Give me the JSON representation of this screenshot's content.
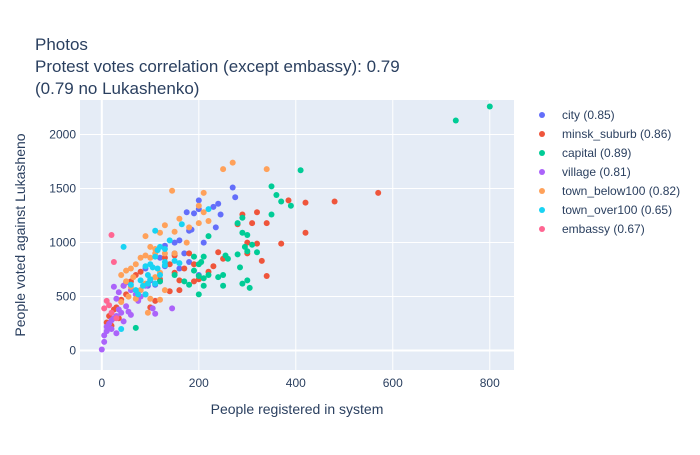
{
  "chart_data": {
    "type": "scatter",
    "title_lines": [
      "Photos",
      "Protest votes correlation (except embassy): 0.79",
      "(0.79 no Lukashenko)"
    ],
    "xlabel": "People registered in system",
    "ylabel": "People voted against Lukasheno",
    "xlim": [
      -45,
      850
    ],
    "ylim": [
      -180,
      2320
    ],
    "x_ticks": [
      0,
      200,
      400,
      600,
      800
    ],
    "y_ticks": [
      0,
      500,
      1000,
      1500,
      2000
    ],
    "grid": true,
    "legend_placement": "right",
    "series": [
      {
        "name": "city (0.85)",
        "color": "#636efa",
        "points": [
          [
            175,
            1280
          ],
          [
            190,
            1270
          ],
          [
            200,
            1310
          ],
          [
            200,
            1390
          ],
          [
            230,
            1330
          ],
          [
            240,
            1360
          ],
          [
            235,
            1140
          ],
          [
            270,
            1510
          ],
          [
            275,
            1420
          ],
          [
            245,
            1260
          ],
          [
            180,
            1110
          ],
          [
            160,
            1020
          ],
          [
            210,
            1000
          ],
          [
            150,
            1000
          ],
          [
            130,
            970
          ],
          [
            120,
            860
          ],
          [
            150,
            900
          ],
          [
            170,
            900
          ],
          [
            130,
            780
          ],
          [
            160,
            760
          ],
          [
            180,
            820
          ],
          [
            200,
            700
          ],
          [
            100,
            650
          ],
          [
            110,
            610
          ],
          [
            90,
            760
          ],
          [
            80,
            560
          ],
          [
            95,
            600
          ],
          [
            120,
            640
          ],
          [
            185,
            1120
          ]
        ]
      },
      {
        "name": "minsk_suburb (0.86)",
        "color": "#ef553b",
        "points": [
          [
            570,
            1460
          ],
          [
            480,
            1380
          ],
          [
            420,
            1370
          ],
          [
            385,
            1390
          ],
          [
            420,
            1090
          ],
          [
            370,
            990
          ],
          [
            340,
            1180
          ],
          [
            320,
            1280
          ],
          [
            310,
            1180
          ],
          [
            290,
            1260
          ],
          [
            280,
            1170
          ],
          [
            300,
            1000
          ],
          [
            320,
            990
          ],
          [
            240,
            910
          ],
          [
            300,
            900
          ],
          [
            330,
            830
          ],
          [
            340,
            690
          ],
          [
            250,
            850
          ],
          [
            230,
            780
          ],
          [
            220,
            730
          ],
          [
            190,
            800
          ],
          [
            170,
            760
          ],
          [
            180,
            900
          ],
          [
            150,
            880
          ],
          [
            130,
            860
          ],
          [
            140,
            800
          ],
          [
            150,
            720
          ],
          [
            160,
            650
          ],
          [
            140,
            550
          ],
          [
            110,
            460
          ],
          [
            100,
            400
          ],
          [
            90,
            520
          ],
          [
            80,
            730
          ],
          [
            60,
            640
          ],
          [
            50,
            520
          ],
          [
            40,
            470
          ],
          [
            45,
            600
          ],
          [
            30,
            400
          ],
          [
            25,
            380
          ],
          [
            15,
            320
          ],
          [
            10,
            260
          ],
          [
            20,
            230
          ],
          [
            35,
            300
          ],
          [
            70,
            700
          ],
          [
            120,
            660
          ],
          [
            160,
            560
          ],
          [
            190,
            640
          ],
          [
            200,
            660
          ]
        ]
      },
      {
        "name": "capital (0.89)",
        "color": "#00cc96",
        "points": [
          [
            730,
            2130
          ],
          [
            800,
            2260
          ],
          [
            410,
            1670
          ],
          [
            390,
            1340
          ],
          [
            350,
            1520
          ],
          [
            360,
            1440
          ],
          [
            370,
            1380
          ],
          [
            350,
            1260
          ],
          [
            290,
            1230
          ],
          [
            280,
            1180
          ],
          [
            290,
            1090
          ],
          [
            300,
            1070
          ],
          [
            310,
            980
          ],
          [
            295,
            960
          ],
          [
            300,
            920
          ],
          [
            320,
            910
          ],
          [
            280,
            890
          ],
          [
            255,
            880
          ],
          [
            260,
            850
          ],
          [
            220,
            1060
          ],
          [
            210,
            870
          ],
          [
            205,
            820
          ],
          [
            200,
            800
          ],
          [
            190,
            870
          ],
          [
            190,
            740
          ],
          [
            200,
            690
          ],
          [
            210,
            670
          ],
          [
            220,
            700
          ],
          [
            240,
            680
          ],
          [
            250,
            700
          ],
          [
            250,
            600
          ],
          [
            210,
            600
          ],
          [
            200,
            520
          ],
          [
            180,
            610
          ],
          [
            285,
            770
          ],
          [
            290,
            620
          ],
          [
            300,
            650
          ],
          [
            305,
            580
          ],
          [
            170,
            640
          ],
          [
            150,
            700
          ],
          [
            120,
            640
          ],
          [
            110,
            620
          ],
          [
            70,
            210
          ]
        ]
      },
      {
        "name": "village (0.81)",
        "color": "#ab63fa",
        "points": [
          [
            0,
            10
          ],
          [
            5,
            80
          ],
          [
            5,
            140
          ],
          [
            10,
            180
          ],
          [
            10,
            220
          ],
          [
            15,
            250
          ],
          [
            20,
            200
          ],
          [
            20,
            280
          ],
          [
            25,
            300
          ],
          [
            30,
            320
          ],
          [
            35,
            380
          ],
          [
            40,
            350
          ],
          [
            30,
            480
          ],
          [
            35,
            540
          ],
          [
            45,
            600
          ],
          [
            50,
            630
          ],
          [
            60,
            560
          ],
          [
            70,
            520
          ],
          [
            80,
            500
          ],
          [
            50,
            410
          ],
          [
            55,
            360
          ],
          [
            60,
            330
          ],
          [
            75,
            460
          ],
          [
            90,
            600
          ],
          [
            105,
            390
          ],
          [
            110,
            340
          ],
          [
            145,
            390
          ],
          [
            25,
            590
          ],
          [
            45,
            270
          ],
          [
            30,
            160
          ]
        ]
      },
      {
        "name": "town_below100 (0.82)",
        "color": "#ffa15a",
        "points": [
          [
            270,
            1740
          ],
          [
            250,
            1680
          ],
          [
            340,
            1680
          ],
          [
            210,
            1460
          ],
          [
            145,
            1480
          ],
          [
            200,
            1340
          ],
          [
            210,
            1280
          ],
          [
            220,
            1200
          ],
          [
            200,
            1180
          ],
          [
            130,
            1160
          ],
          [
            120,
            1090
          ],
          [
            90,
            1060
          ],
          [
            100,
            960
          ],
          [
            110,
            940
          ],
          [
            130,
            900
          ],
          [
            110,
            900
          ],
          [
            100,
            860
          ],
          [
            90,
            880
          ],
          [
            80,
            860
          ],
          [
            70,
            800
          ],
          [
            60,
            760
          ],
          [
            50,
            740
          ],
          [
            40,
            700
          ],
          [
            50,
            640
          ],
          [
            60,
            590
          ],
          [
            80,
            560
          ],
          [
            90,
            620
          ],
          [
            100,
            660
          ],
          [
            110,
            680
          ],
          [
            120,
            720
          ],
          [
            150,
            900
          ],
          [
            150,
            1100
          ],
          [
            160,
            1220
          ],
          [
            180,
            1140
          ],
          [
            130,
            560
          ],
          [
            100,
            480
          ],
          [
            70,
            480
          ],
          [
            40,
            450
          ],
          [
            55,
            500
          ],
          [
            95,
            350
          ],
          [
            120,
            470
          ],
          [
            65,
            680
          ],
          [
            175,
            1000
          ]
        ]
      },
      {
        "name": "town_over100 (0.65)",
        "color": "#19d3f3",
        "points": [
          [
            45,
            960
          ],
          [
            110,
            1110
          ],
          [
            140,
            1020
          ],
          [
            165,
            1170
          ],
          [
            220,
            1310
          ],
          [
            130,
            940
          ],
          [
            120,
            960
          ],
          [
            110,
            870
          ],
          [
            130,
            820
          ],
          [
            150,
            830
          ],
          [
            100,
            800
          ],
          [
            90,
            780
          ],
          [
            105,
            770
          ],
          [
            115,
            760
          ],
          [
            95,
            700
          ],
          [
            120,
            700
          ],
          [
            100,
            660
          ],
          [
            80,
            650
          ],
          [
            85,
            600
          ],
          [
            95,
            620
          ],
          [
            110,
            620
          ],
          [
            70,
            560
          ],
          [
            75,
            520
          ],
          [
            90,
            520
          ],
          [
            130,
            790
          ],
          [
            160,
            810
          ],
          [
            40,
            200
          ],
          [
            60,
            610
          ],
          [
            115,
            930
          ]
        ]
      },
      {
        "name": "embassy (0.67)",
        "color": "#ff6692",
        "points": [
          [
            20,
            1070
          ],
          [
            25,
            820
          ],
          [
            5,
            390
          ],
          [
            10,
            460
          ],
          [
            15,
            420
          ],
          [
            20,
            350
          ],
          [
            30,
            300
          ]
        ]
      }
    ]
  }
}
